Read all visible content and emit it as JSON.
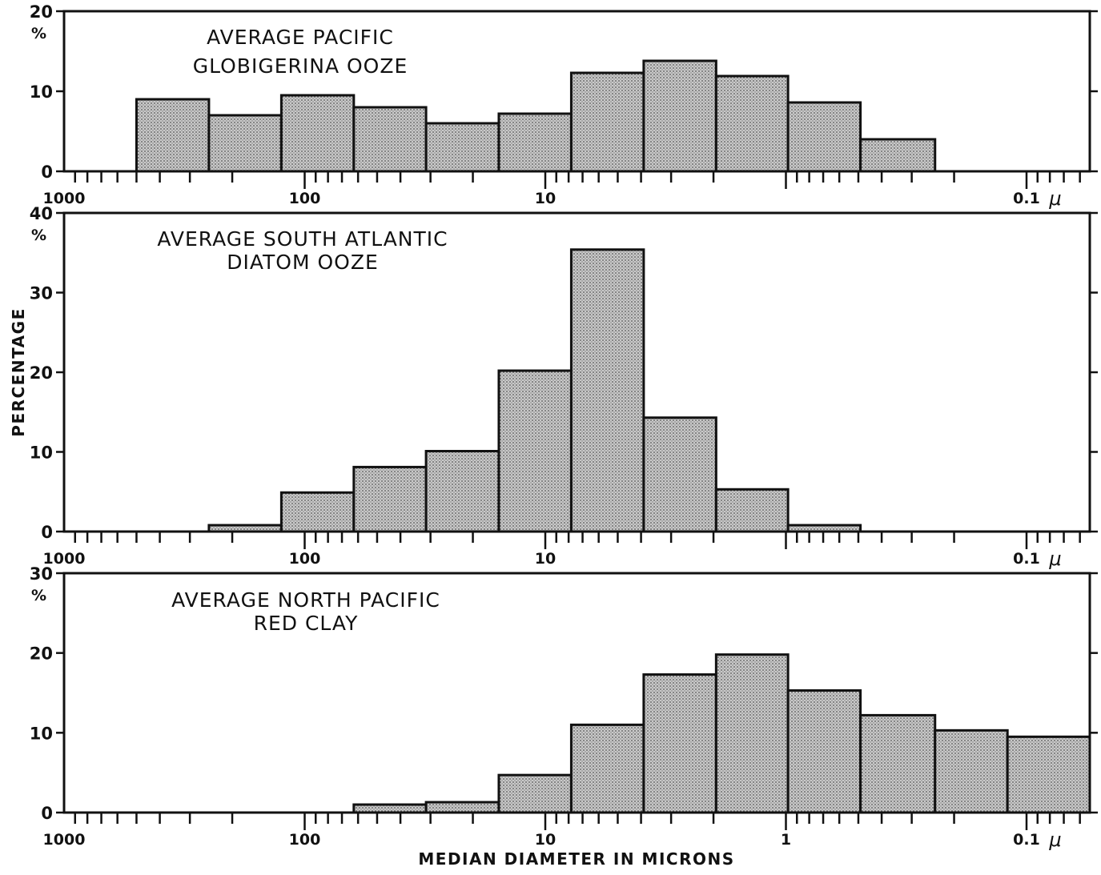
{
  "colors": {
    "ink": "#111111",
    "bar_fill": "#bdbdbd"
  },
  "ylabel": "PERCENTAGE",
  "xlabel": "MEDIAN DIAMETER IN MICRONS",
  "x_unit": "μ",
  "percent_sign": "%",
  "chart_data": [
    {
      "type": "bar",
      "title": "AVERAGE PACIFIC GLOBIGERINA OOZE",
      "title_lines": [
        "AVERAGE PACIFIC",
        "GLOBIGERINA OOZE"
      ],
      "x_scale": "log",
      "x_axis_direction": "decreasing",
      "xlim": [
        1000,
        0.05
      ],
      "ylim": [
        0,
        20
      ],
      "y_ticks": [
        0,
        10,
        20
      ],
      "x_tick_labels": [
        "1000",
        "100",
        "10",
        "0.1"
      ],
      "x_tick_label_values": [
        1000,
        100,
        10,
        0.1
      ],
      "bins": [
        {
          "x_from": 500,
          "x_to": 250,
          "value": 9
        },
        {
          "x_from": 250,
          "x_to": 125,
          "value": 7
        },
        {
          "x_from": 125,
          "x_to": 62.5,
          "value": 9.5
        },
        {
          "x_from": 62.5,
          "x_to": 31.3,
          "value": 8
        },
        {
          "x_from": 31.3,
          "x_to": 15.6,
          "value": 6
        },
        {
          "x_from": 15.6,
          "x_to": 7.8,
          "value": 7.2
        },
        {
          "x_from": 7.8,
          "x_to": 3.9,
          "value": 12.3
        },
        {
          "x_from": 3.9,
          "x_to": 1.95,
          "value": 13.8
        },
        {
          "x_from": 1.95,
          "x_to": 0.98,
          "value": 11.9
        },
        {
          "x_from": 0.98,
          "x_to": 0.49,
          "value": 8.6
        },
        {
          "x_from": 0.49,
          "x_to": 0.24,
          "value": 4
        }
      ]
    },
    {
      "type": "bar",
      "title": "AVERAGE SOUTH ATLANTIC DIATOM OOZE",
      "title_lines": [
        "AVERAGE SOUTH ATLANTIC",
        "DIATOM OOZE"
      ],
      "x_scale": "log",
      "x_axis_direction": "decreasing",
      "xlim": [
        1000,
        0.05
      ],
      "ylim": [
        0,
        40
      ],
      "y_ticks": [
        0,
        10,
        20,
        30,
        40
      ],
      "x_tick_labels": [
        "1000",
        "100",
        "10",
        "0.1"
      ],
      "x_tick_label_values": [
        1000,
        100,
        10,
        0.1
      ],
      "bins": [
        {
          "x_from": 250,
          "x_to": 125,
          "value": 0.8
        },
        {
          "x_from": 125,
          "x_to": 62.5,
          "value": 4.9
        },
        {
          "x_from": 62.5,
          "x_to": 31.3,
          "value": 8.1
        },
        {
          "x_from": 31.3,
          "x_to": 15.6,
          "value": 10.1
        },
        {
          "x_from": 15.6,
          "x_to": 7.8,
          "value": 20.2
        },
        {
          "x_from": 7.8,
          "x_to": 3.9,
          "value": 35.4
        },
        {
          "x_from": 3.9,
          "x_to": 1.95,
          "value": 14.3
        },
        {
          "x_from": 1.95,
          "x_to": 0.98,
          "value": 5.3
        },
        {
          "x_from": 0.98,
          "x_to": 0.49,
          "value": 0.8
        }
      ]
    },
    {
      "type": "bar",
      "title": "AVERAGE NORTH PACIFIC RED CLAY",
      "title_lines": [
        "AVERAGE NORTH PACIFIC",
        "RED CLAY"
      ],
      "x_scale": "log",
      "x_axis_direction": "decreasing",
      "xlim": [
        1000,
        0.05
      ],
      "ylim": [
        0,
        30
      ],
      "y_ticks": [
        0,
        10,
        20,
        30
      ],
      "x_tick_labels": [
        "1000",
        "100",
        "10",
        "1",
        "0.1"
      ],
      "x_tick_label_values": [
        1000,
        100,
        10,
        1,
        0.1
      ],
      "bins": [
        {
          "x_from": 62.5,
          "x_to": 31.3,
          "value": 1
        },
        {
          "x_from": 31.3,
          "x_to": 15.6,
          "value": 1.3
        },
        {
          "x_from": 15.6,
          "x_to": 7.8,
          "value": 4.7
        },
        {
          "x_from": 7.8,
          "x_to": 3.9,
          "value": 11
        },
        {
          "x_from": 3.9,
          "x_to": 1.95,
          "value": 17.3
        },
        {
          "x_from": 1.95,
          "x_to": 0.98,
          "value": 19.8
        },
        {
          "x_from": 0.98,
          "x_to": 0.49,
          "value": 15.3
        },
        {
          "x_from": 0.49,
          "x_to": 0.24,
          "value": 12.2
        },
        {
          "x_from": 0.24,
          "x_to": 0.12,
          "value": 10.3
        },
        {
          "x_from": 0.12,
          "x_to": 0.05,
          "value": 9.5,
          "dashed_top": true
        }
      ]
    }
  ]
}
